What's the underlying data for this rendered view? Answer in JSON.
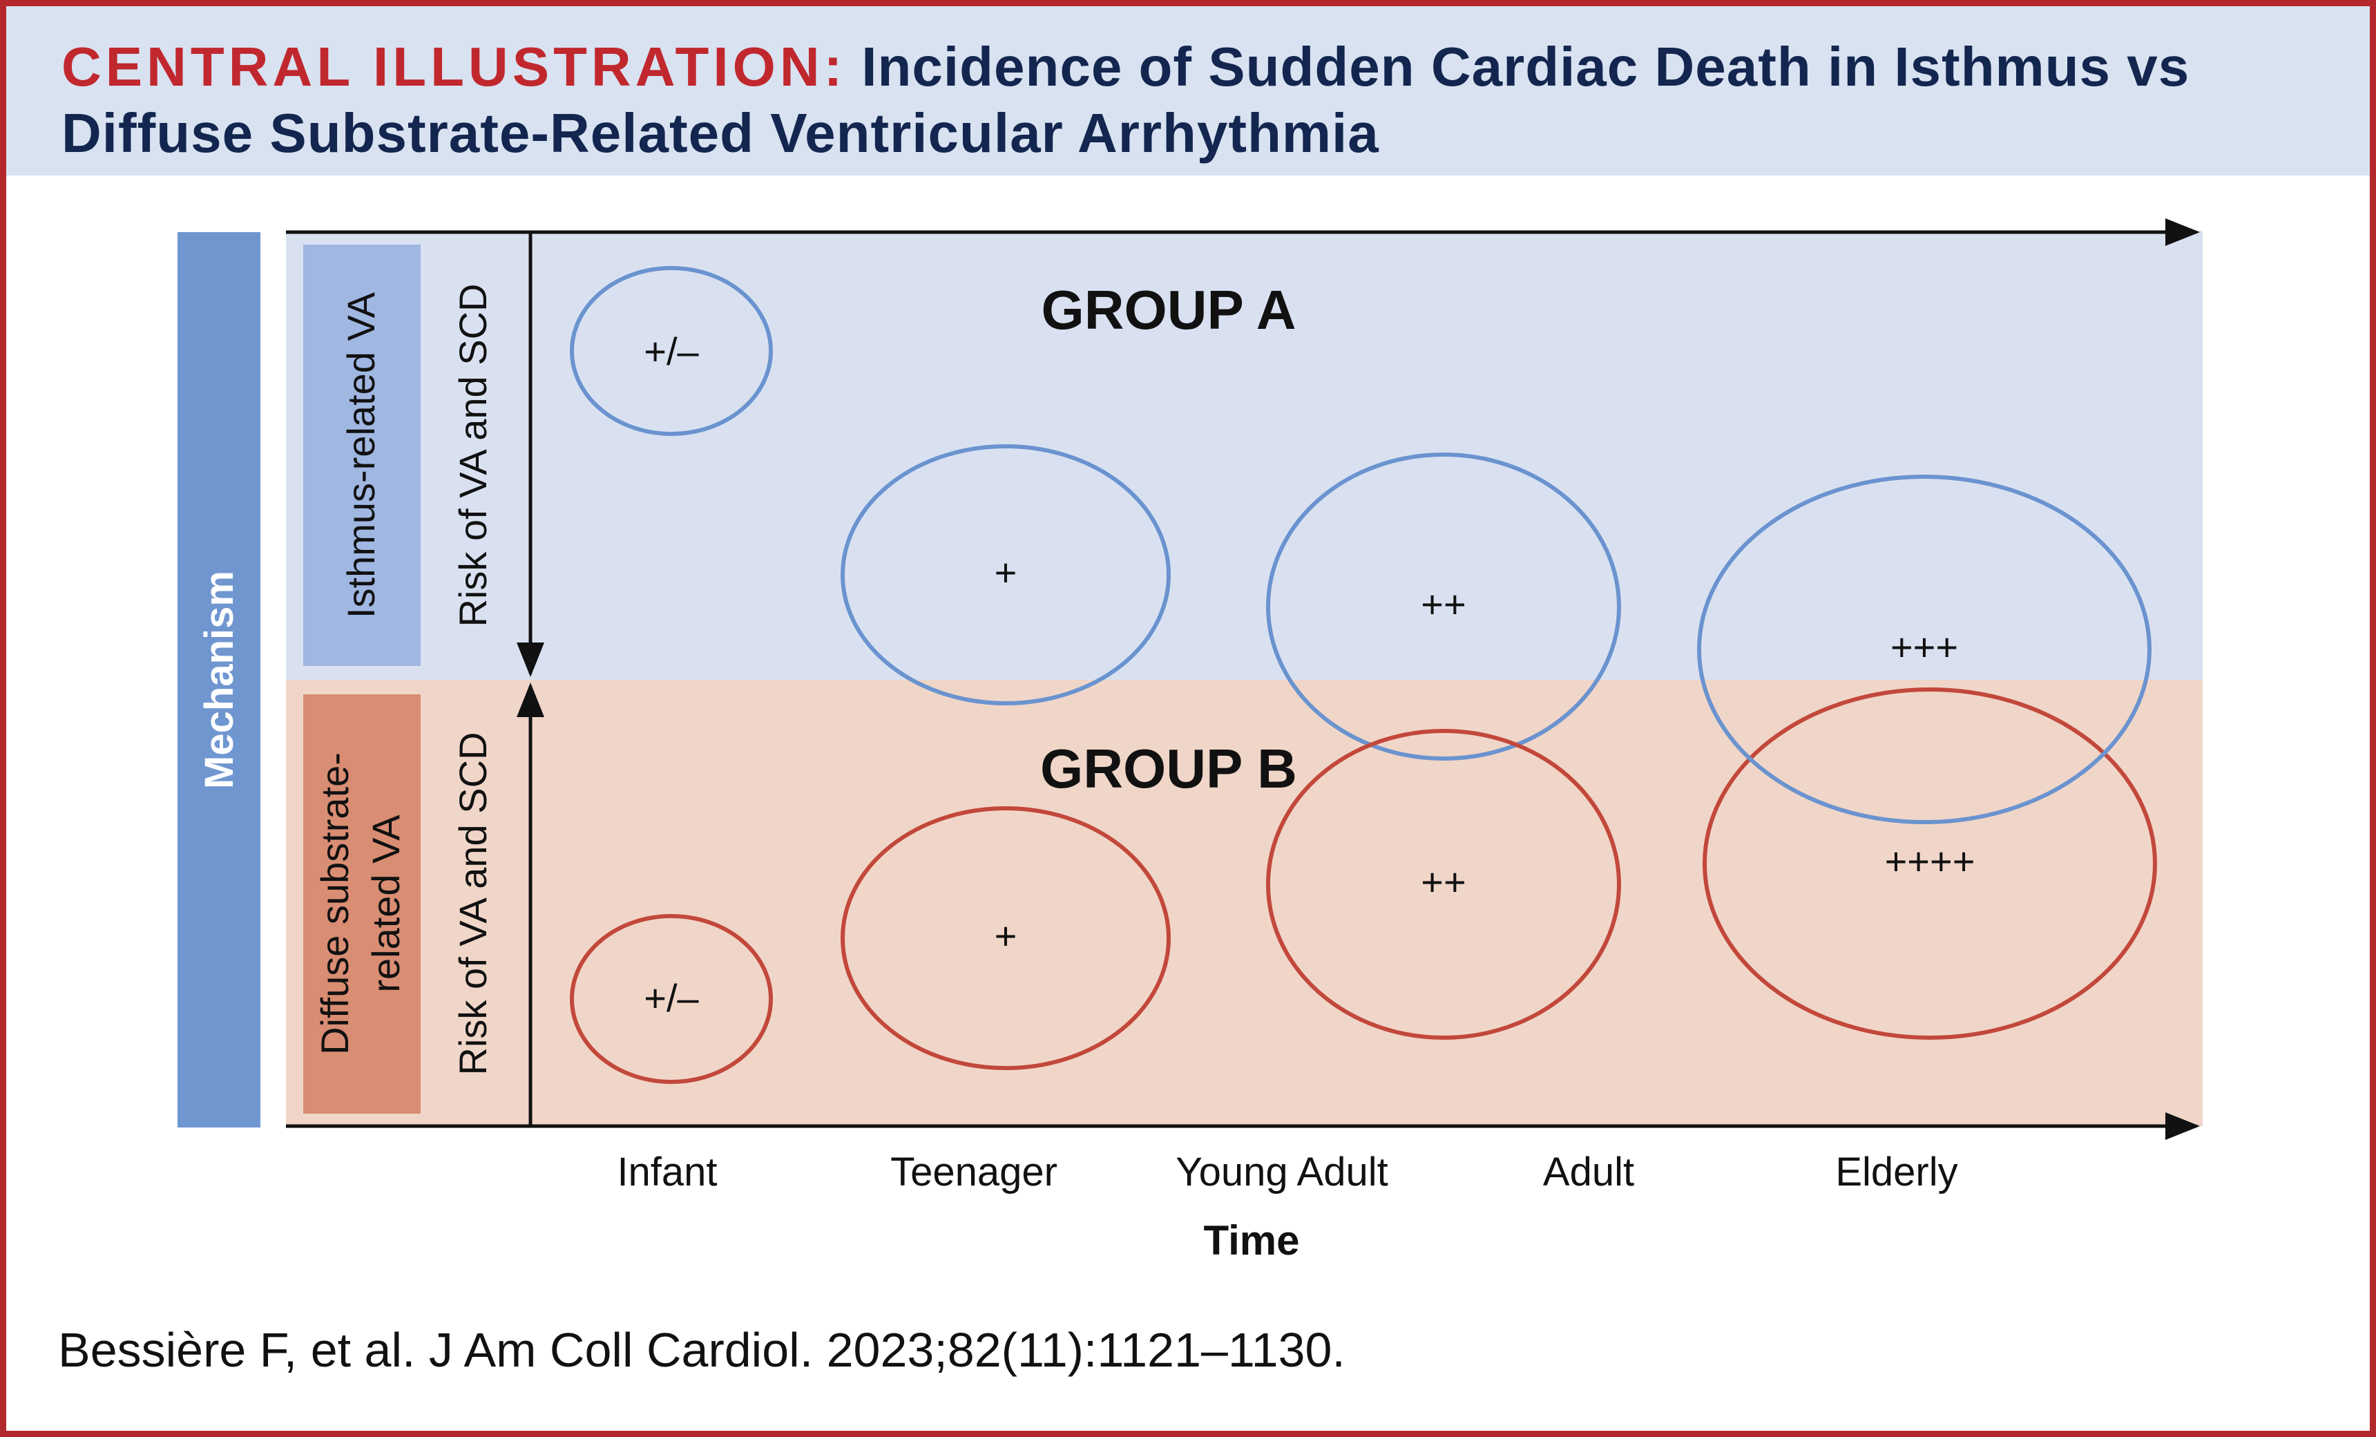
{
  "header": {
    "kicker": "CENTRAL ILLUSTRATION:",
    "title": "Incidence of Sudden Cardiac Death in Isthmus vs Diffuse Substrate-Related Ventricular Arrhythmia"
  },
  "diagram": {
    "mechanism_label": "Mechanism",
    "top_mechanism": "Isthmus-related VA",
    "bottom_mechanism_line1": "Diffuse substrate-",
    "bottom_mechanism_line2": "related VA",
    "risk_label_top": "Risk of VA and SCD",
    "risk_label_bottom": "Risk of VA and SCD",
    "group_a_label": "GROUP A",
    "group_b_label": "GROUP B",
    "time_categories": [
      "Infant",
      "Teenager",
      "Young Adult",
      "Adult",
      "Elderly"
    ],
    "x_axis_label": "Time",
    "group_a_risk": [
      "+/–",
      "+",
      "++",
      "+++"
    ],
    "group_b_risk": [
      "+/–",
      "+",
      "++",
      "++++"
    ]
  },
  "colors": {
    "group_a_band": "#d9e1f1",
    "group_b_band": "#f0d6c8",
    "group_a_ellipse": "#6a93cf",
    "group_b_ellipse": "#c2483b",
    "mechanism_bar": "#7096d0",
    "isthmus_box": "#a0b7e2",
    "diffuse_box": "#d98d73",
    "header_background": "#d9e2f1",
    "kicker_color": "#c0282e",
    "title_color": "#13264f"
  },
  "citation": "Bessière F, et al. J Am Coll Cardiol. 2023;82(11):1121–1130."
}
